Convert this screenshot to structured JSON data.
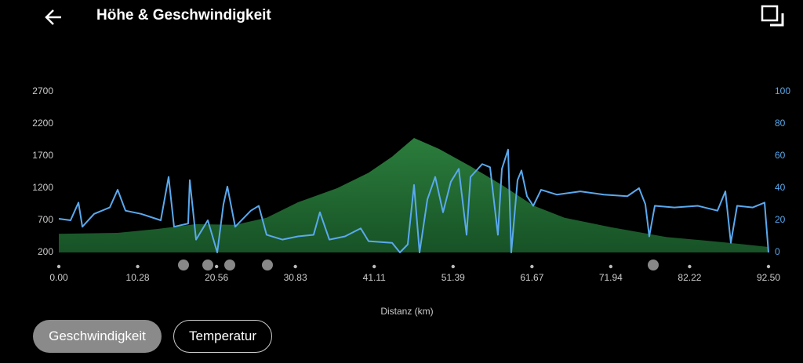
{
  "header": {
    "title": "Höhe & Geschwindigkeit"
  },
  "buttons": [
    "Geschwindigkeit",
    "Temperatur"
  ],
  "chart_data": {
    "type": "combo",
    "x_label": "Distanz (km)",
    "xlim": [
      0,
      92.5
    ],
    "xticks": [
      {
        "value": 0,
        "label": "0.00"
      },
      10.28,
      20.56,
      30.83,
      41.11,
      51.39,
      61.67,
      71.94,
      82.22,
      {
        "value": 92.5,
        "label": "92.50"
      }
    ],
    "ylim": [
      200,
      2700
    ],
    "yticks": [
      200,
      700,
      1200,
      1700,
      2200,
      2700
    ],
    "y2lim": [
      0,
      100
    ],
    "y2ticks": [
      0,
      20,
      40,
      60,
      80,
      100
    ],
    "series": [
      {
        "type": "area",
        "color": "#2b7d3c",
        "x": [
          0,
          7.67,
          12.78,
          17.89,
          23.0,
          27.08,
          31.17,
          36.28,
          40.37,
          43.44,
          46.3,
          49.57,
          53.66,
          57.75,
          61.84,
          65.92,
          72.06,
          79.21,
          87.39,
          92.5
        ],
        "values": [
          490,
          505,
          565,
          640,
          630,
          740,
          980,
          1200,
          1440,
          1690,
          1980,
          1810,
          1540,
          1250,
          930,
          740,
          590,
          440,
          350,
          285
        ]
      },
      {
        "type": "line",
        "axis": "y2",
        "color": "#5aa9ee",
        "x": [
          0,
          1.53,
          2.56,
          3.07,
          4.6,
          6.64,
          7.67,
          8.69,
          10.73,
          13.29,
          14.31,
          15.02,
          16.86,
          17.07,
          17.89,
          19.42,
          20.65,
          21.46,
          21.97,
          22.99,
          25.03,
          26.06,
          27.08,
          29.13,
          31.17,
          33.21,
          34.03,
          35.26,
          37.3,
          39.35,
          40.37,
          43.44,
          44.46,
          45.48,
          46.3,
          47.02,
          48.04,
          49.06,
          50.08,
          51.1,
          52.13,
          53.15,
          53.66,
          55.19,
          56.21,
          57.23,
          57.75,
          58.56,
          58.97,
          59.79,
          60.3,
          61.02,
          61.84,
          62.86,
          64.9,
          67.97,
          71.03,
          74.1,
          75.63,
          76.45,
          76.96,
          77.68,
          80.23,
          83.3,
          85.85,
          86.88,
          87.59,
          88.41,
          90.45,
          91.99,
          92.5
        ],
        "values": [
          21,
          20,
          31,
          16,
          24,
          28,
          39,
          26,
          24,
          20,
          47,
          16,
          18,
          45,
          8,
          20,
          0,
          30,
          41,
          16,
          26,
          29,
          11,
          8,
          10,
          11,
          25,
          8,
          10,
          15,
          7,
          6,
          0,
          5,
          42,
          0,
          33,
          47,
          25,
          44,
          52,
          11,
          47,
          55,
          53,
          11,
          52,
          64,
          0,
          45,
          51,
          35,
          29,
          39,
          36,
          38,
          36,
          35,
          40,
          30,
          10,
          29,
          28,
          29,
          26,
          38,
          6,
          29,
          28,
          31,
          0
        ]
      }
    ]
  }
}
